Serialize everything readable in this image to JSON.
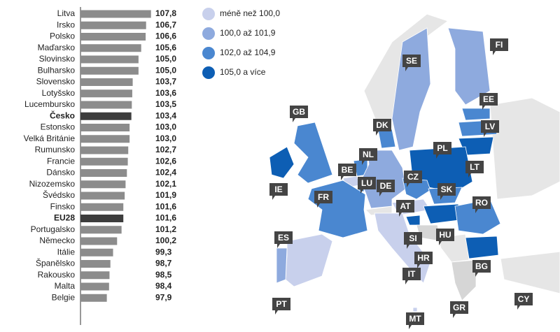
{
  "chart_data": {
    "type": "bar",
    "categories": [
      "Litva",
      "Irsko",
      "Polsko",
      "Maďarsko",
      "Slovinsko",
      "Bulharsko",
      "Slovensko",
      "Lotyšsko",
      "Lucembursko",
      "Česko",
      "Estonsko",
      "Velká Británie",
      "Rumunsko",
      "Francie",
      "Dánsko",
      "Nizozemsko",
      "Švédsko",
      "Finsko",
      "EU28",
      "Portugalsko",
      "Německo",
      "Itálie",
      "Španělsko",
      "Rakousko",
      "Malta",
      "Belgie"
    ],
    "values": [
      107.8,
      106.7,
      106.6,
      105.6,
      105.0,
      105.0,
      103.7,
      103.6,
      103.5,
      103.4,
      103.0,
      103.0,
      102.7,
      102.6,
      102.4,
      102.1,
      101.9,
      101.6,
      101.6,
      101.2,
      100.2,
      99.3,
      98.7,
      98.5,
      98.4,
      97.9
    ],
    "value_labels": [
      "107,8",
      "106,7",
      "106,6",
      "105,6",
      "105,0",
      "105,0",
      "103,7",
      "103,6",
      "103,5",
      "103,4",
      "103,0",
      "103,0",
      "102,7",
      "102,6",
      "102,4",
      "102,1",
      "101,9",
      "101,6",
      "101,6",
      "101,2",
      "100,2",
      "99,3",
      "98,7",
      "98,5",
      "98,4",
      "97,9"
    ],
    "colors": [
      "#8c8c8c",
      "#8c8c8c",
      "#8c8c8c",
      "#8c8c8c",
      "#8c8c8c",
      "#8c8c8c",
      "#8c8c8c",
      "#8c8c8c",
      "#8c8c8c",
      "#3d3d3d",
      "#8c8c8c",
      "#8c8c8c",
      "#8c8c8c",
      "#8c8c8c",
      "#8c8c8c",
      "#8c8c8c",
      "#8c8c8c",
      "#8c8c8c",
      "#3d3d3d",
      "#8c8c8c",
      "#8c8c8c",
      "#8c8c8c",
      "#8c8c8c",
      "#8c8c8c",
      "#8c8c8c",
      "#8c8c8c"
    ],
    "highlight_color": "#3d3d3d",
    "xlim": [
      92,
      108
    ]
  },
  "map": {
    "legend": [
      {
        "label": "méně než 100,0",
        "color": "#c8d0ec"
      },
      {
        "label": "100,0 až 101,9",
        "color": "#8eaade"
      },
      {
        "label": "102,0 až 104,9",
        "color": "#4a87d0"
      },
      {
        "label": "105,0 a více",
        "color": "#0d5eb4"
      }
    ],
    "countries": [
      {
        "code": "SE",
        "color": "#8eaade"
      },
      {
        "code": "FI",
        "color": "#8eaade"
      },
      {
        "code": "EE",
        "color": "#4a87d0"
      },
      {
        "code": "LV",
        "color": "#4a87d0"
      },
      {
        "code": "LT",
        "color": "#0d5eb4"
      },
      {
        "code": "PL",
        "color": "#0d5eb4"
      },
      {
        "code": "DK",
        "color": "#4a87d0"
      },
      {
        "code": "GB",
        "color": "#4a87d0"
      },
      {
        "code": "IE",
        "color": "#0d5eb4"
      },
      {
        "code": "NL",
        "color": "#4a87d0"
      },
      {
        "code": "BE",
        "color": "#c8d0ec"
      },
      {
        "code": "LU",
        "color": "#4a87d0"
      },
      {
        "code": "DE",
        "color": "#8eaade"
      },
      {
        "code": "CZ",
        "color": "#4a87d0"
      },
      {
        "code": "SK",
        "color": "#4a87d0"
      },
      {
        "code": "AT",
        "color": "#c8d0ec"
      },
      {
        "code": "HU",
        "color": "#0d5eb4"
      },
      {
        "code": "RO",
        "color": "#4a87d0"
      },
      {
        "code": "BG",
        "color": "#0d5eb4"
      },
      {
        "code": "SI",
        "color": "#0d5eb4"
      },
      {
        "code": "HR",
        "color": "#d6d6d6"
      },
      {
        "code": "IT",
        "color": "#c8d0ec"
      },
      {
        "code": "FR",
        "color": "#4a87d0"
      },
      {
        "code": "ES",
        "color": "#c8d0ec"
      },
      {
        "code": "PT",
        "color": "#8eaade"
      },
      {
        "code": "GR",
        "color": "#d6d6d6"
      },
      {
        "code": "CY",
        "color": "#d6d6d6"
      },
      {
        "code": "MT",
        "color": "#c8d0ec"
      }
    ]
  }
}
